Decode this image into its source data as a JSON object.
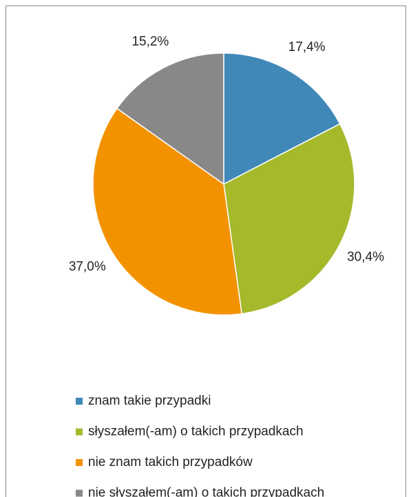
{
  "chart_data": {
    "type": "pie",
    "categories": [
      "znam takie przypadki",
      "słyszałem(-am) o takich przypadkach",
      "nie znam takich przypadków",
      "nie słyszałem(-am) o takich przypadkach"
    ],
    "values": [
      17.4,
      30.4,
      37.0,
      15.2
    ],
    "value_labels": [
      "17,4%",
      "30,4%",
      "37,0%",
      "15,2%"
    ],
    "colors": [
      "#4088b8",
      "#a6b92b",
      "#f39200",
      "#888888"
    ],
    "legend": "bottom"
  }
}
